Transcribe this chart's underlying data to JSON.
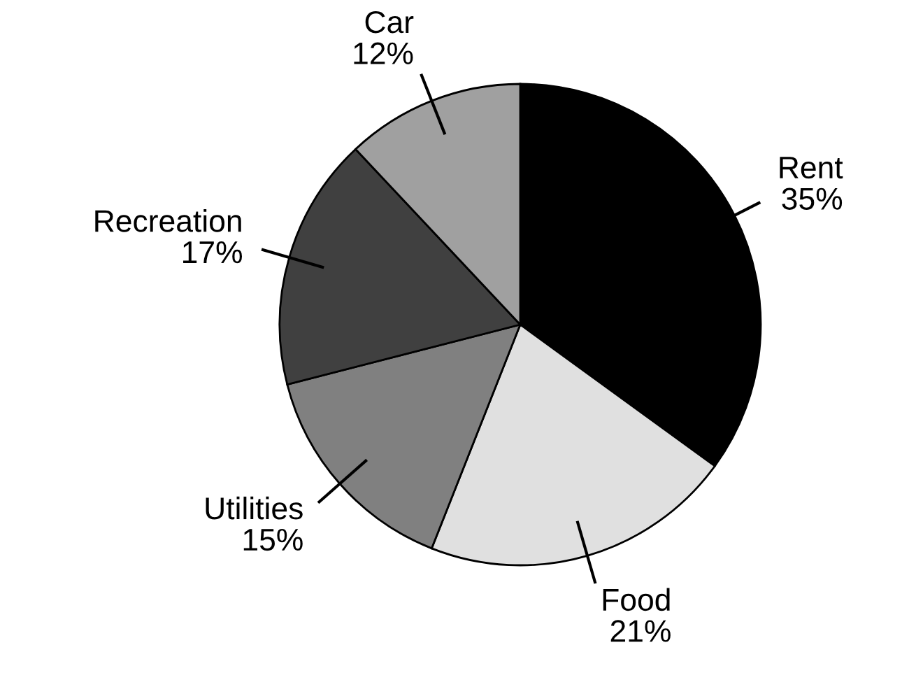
{
  "chart_data": {
    "type": "pie",
    "categories": [
      "Rent",
      "Food",
      "Utilities",
      "Recreation",
      "Car"
    ],
    "values": [
      35,
      21,
      15,
      17,
      12
    ],
    "value_labels": [
      "35%",
      "21%",
      "15%",
      "17%",
      "12%"
    ],
    "colors": [
      "#000000",
      "#e0e0e0",
      "#808080",
      "#404040",
      "#a0a0a0"
    ]
  }
}
